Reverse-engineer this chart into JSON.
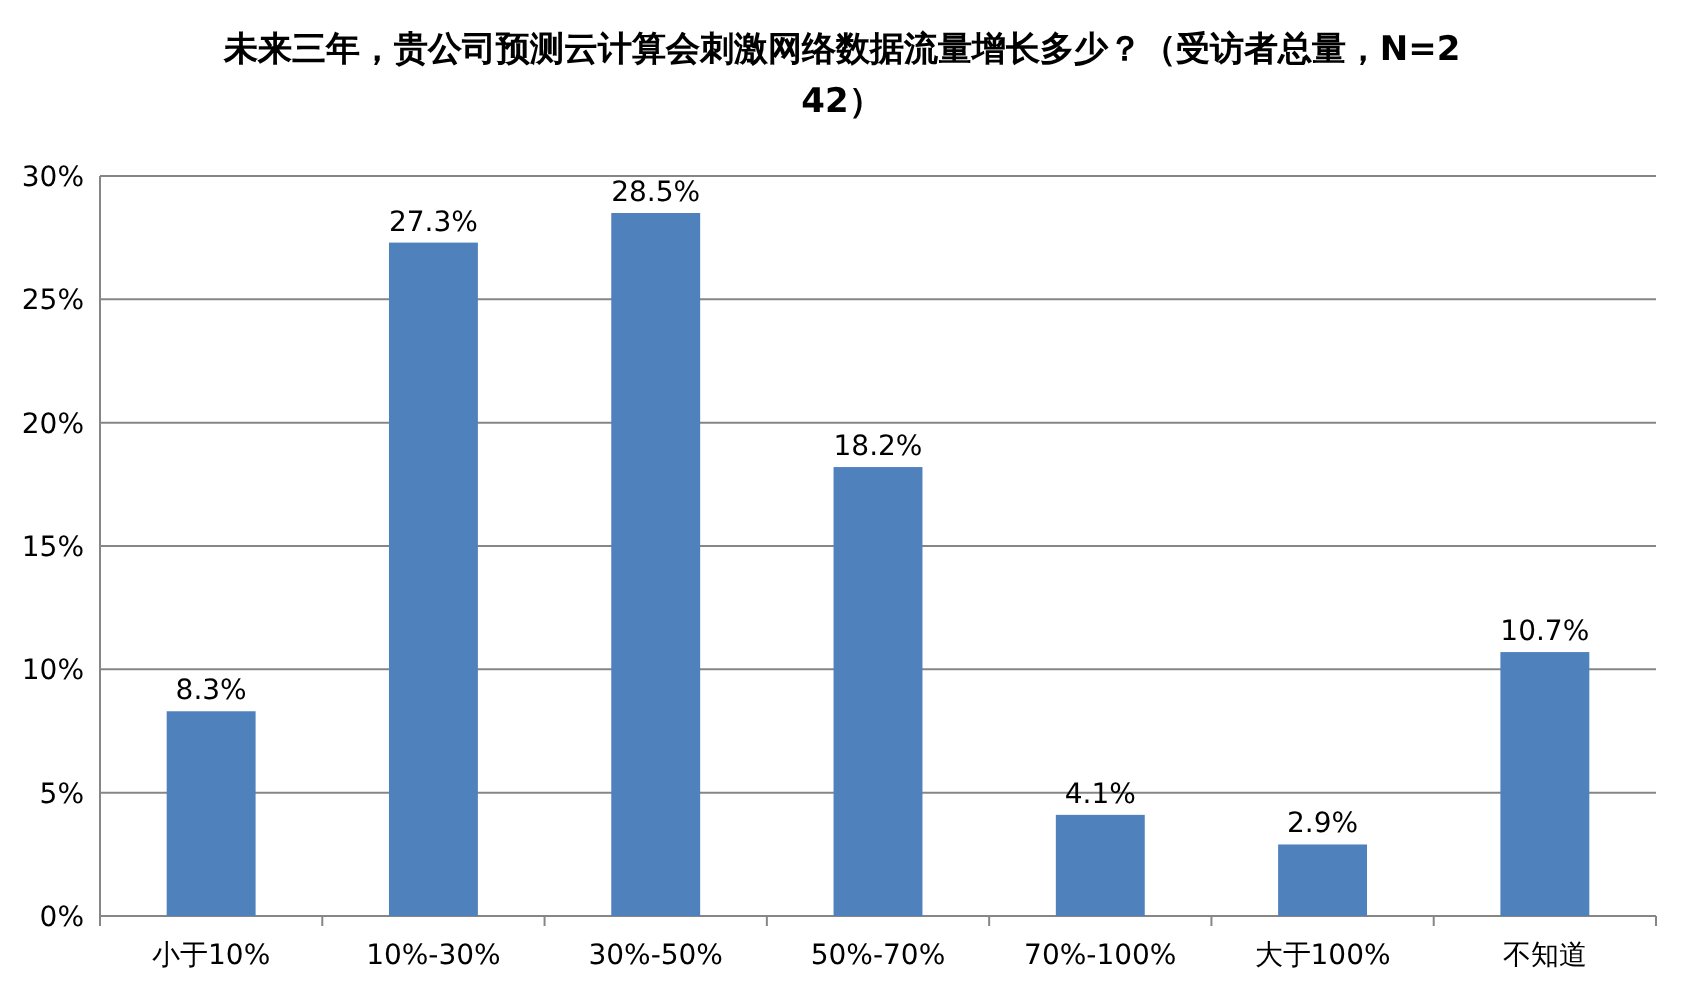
{
  "chart_data": {
    "type": "bar",
    "title": "未来三年，贵公司预测云计算会刺激网络数据流量增长多少？（受访者总量，N=242）",
    "categories": [
      "小于10%",
      "10%-30%",
      "30%-50%",
      "50%-70%",
      "70%-100%",
      "大于100%",
      "不知道"
    ],
    "values": [
      8.3,
      27.3,
      28.5,
      18.2,
      4.1,
      2.9,
      10.7
    ],
    "value_labels": [
      "8.3%",
      "27.3%",
      "28.5%",
      "18.2%",
      "4.1%",
      "2.9%",
      "10.7%"
    ],
    "color": "#4f81bd",
    "ylim": [
      0,
      30
    ],
    "yticks": [
      {
        "value": 0,
        "label": "0%"
      },
      {
        "value": 5,
        "label": "5%"
      },
      {
        "value": 10,
        "label": "10%"
      },
      {
        "value": 15,
        "label": "15%"
      },
      {
        "value": 20,
        "label": "20%"
      },
      {
        "value": 25,
        "label": "25%"
      },
      {
        "value": 30,
        "label": "30%"
      }
    ],
    "grid": "y"
  }
}
